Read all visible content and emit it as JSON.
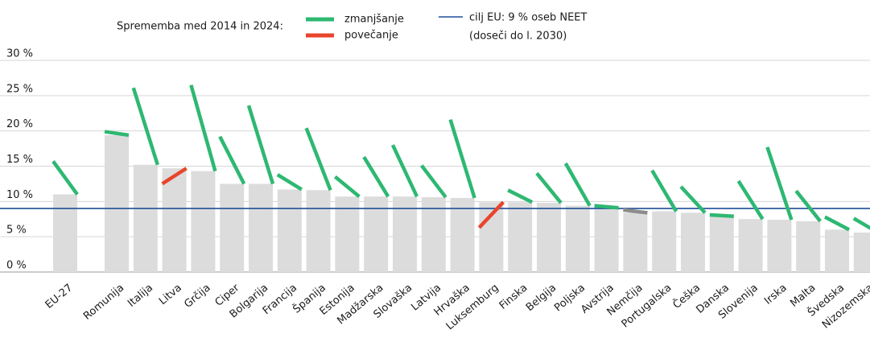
{
  "chart_data": {
    "type": "slope-bar",
    "legend_title": "Sprememba med 2014 in 2024:",
    "legend": [
      {
        "name": "zmanjšanje",
        "color": "#2eb872"
      },
      {
        "name": "povečanje",
        "color": "#e8452c"
      }
    ],
    "target": {
      "value": 9,
      "label": "cilj EU: 9 % oseb NEET",
      "note": "(doseči do l. 2030)",
      "color": "#1f4e99"
    },
    "categories": [
      "EU-27",
      "Romunija",
      "Italija",
      "Litva",
      "Grčija",
      "Ciper",
      "Bolgarija",
      "Francija",
      "Španija",
      "Estonija",
      "Madžarska",
      "Slovaška",
      "Latvija",
      "Hrvaška",
      "Luksemburg",
      "Finska",
      "Belgija",
      "Poljska",
      "Avstrija",
      "Nemčija",
      "Portugalska",
      "Češka",
      "Danska",
      "Slovenija",
      "Irska",
      "Malta",
      "Švedska",
      "Nizozemska"
    ],
    "values_2014": [
      15.7,
      19.9,
      26.1,
      12.5,
      26.5,
      19.2,
      23.6,
      13.8,
      20.4,
      13.5,
      16.3,
      18.0,
      15.1,
      21.6,
      6.3,
      11.6,
      14.0,
      15.4,
      9.4,
      8.8,
      14.4,
      12.1,
      8.1,
      12.9,
      17.7,
      11.5,
      7.8,
      7.6
    ],
    "values_2024": [
      11.0,
      19.4,
      15.2,
      14.7,
      14.3,
      12.5,
      12.5,
      11.7,
      11.6,
      10.7,
      10.7,
      10.7,
      10.6,
      10.5,
      9.9,
      9.9,
      9.8,
      9.4,
      9.1,
      8.4,
      8.6,
      8.4,
      7.9,
      7.5,
      7.4,
      7.2,
      6.0,
      5.6
    ],
    "line_colors": [
      "#2eb872",
      "#2eb872",
      "#2eb872",
      "#e8452c",
      "#2eb872",
      "#2eb872",
      "#2eb872",
      "#2eb872",
      "#2eb872",
      "#2eb872",
      "#2eb872",
      "#2eb872",
      "#2eb872",
      "#2eb872",
      "#e8452c",
      "#2eb872",
      "#2eb872",
      "#2eb872",
      "#2eb872",
      "#8c8c8c",
      "#2eb872",
      "#2eb872",
      "#2eb872",
      "#2eb872",
      "#2eb872",
      "#2eb872",
      "#2eb872",
      "#2eb872"
    ],
    "bar_color": "#dcdcdc",
    "ylim": [
      0,
      30
    ],
    "yticks": [
      {
        "value": 0,
        "label": "0 %"
      },
      {
        "value": 5,
        "label": "5 %"
      },
      {
        "value": 10,
        "label": "10 %"
      },
      {
        "value": 15,
        "label": "15 %"
      },
      {
        "value": 20,
        "label": "20 %"
      },
      {
        "value": 25,
        "label": "25 %"
      },
      {
        "value": 30,
        "label": "30 %"
      }
    ],
    "grid": true
  }
}
